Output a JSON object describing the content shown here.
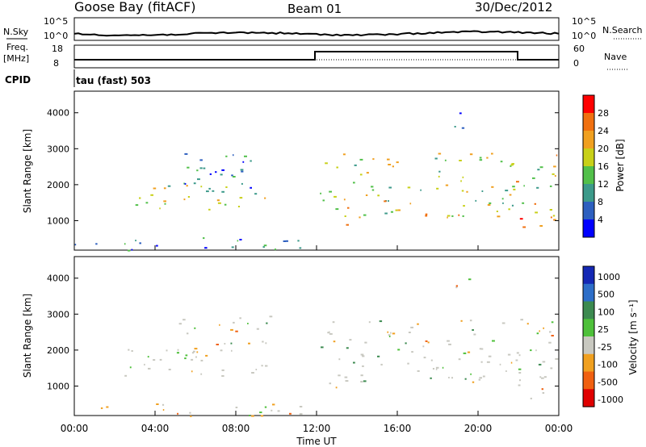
{
  "header": {
    "station": "Goose Bay (fitACF)",
    "beam": "Beam 01",
    "date": "30/Dec/2012"
  },
  "aux_panels": {
    "nsky_label": "N.Sky",
    "nsky_ticks": [
      "10^5",
      "10^0"
    ],
    "nsearch_label": "N.Search",
    "nsearch_ticks": [
      "10^5",
      "10^0"
    ],
    "freq_label": "Freq.",
    "freq_unit": "[MHz]",
    "freq_ticks": [
      "18",
      "8"
    ],
    "nave_label": "Nave",
    "nave_ticks": [
      "60",
      "0"
    ],
    "cpid_label": "CPID",
    "cpid_value": "tau (fast) 503"
  },
  "chart_data": [
    {
      "type": "heatmap",
      "name": "power",
      "ylabel": "Slant Range [km]",
      "ylim": [
        180,
        4600
      ],
      "yticks": [
        "1000",
        "2000",
        "3000",
        "4000"
      ],
      "xlim": [
        "00:00",
        "24:00"
      ],
      "colorbar": {
        "label": "Power [dB]",
        "ticks": [
          "4",
          "8",
          "12",
          "16",
          "20",
          "24",
          "28"
        ],
        "colors": [
          "#0000ff",
          "#2d5fbf",
          "#3c9a8a",
          "#52c04a",
          "#c8d018",
          "#f0a020",
          "#f07010",
          "#ff0000"
        ]
      },
      "echo_regions": [
        {
          "t0": 2.4,
          "t1": 9.6,
          "r0": 1250,
          "r1": 2100,
          "level": 0.5
        },
        {
          "t0": 5.0,
          "t1": 9.8,
          "r0": 1900,
          "r1": 3000,
          "level": 0.2
        },
        {
          "t0": 12.1,
          "t1": 24.0,
          "r0": 1100,
          "r1": 2900,
          "level": 0.55
        },
        {
          "t0": 12.5,
          "t1": 13.5,
          "r0": 850,
          "r1": 1300,
          "level": 0.7
        },
        {
          "t0": 21.8,
          "t1": 23.8,
          "r0": 600,
          "r1": 1300,
          "level": 0.8
        },
        {
          "t0": 0.0,
          "t1": 11.8,
          "r0": 180,
          "r1": 550,
          "level": 0.15
        },
        {
          "t0": 18.8,
          "t1": 19.8,
          "r0": 3500,
          "r1": 4100,
          "level": 0.25
        }
      ]
    },
    {
      "type": "heatmap",
      "name": "velocity",
      "xlabel": "Time UT",
      "ylabel": "Slant Range [km]",
      "ylim": [
        180,
        4600
      ],
      "yticks": [
        "1000",
        "2000",
        "3000",
        "4000"
      ],
      "xticks": [
        "00:00",
        "04:00",
        "08:00",
        "12:00",
        "16:00",
        "20:00",
        "00:00"
      ],
      "colorbar": {
        "label": "Velocity [m s⁻¹]",
        "ticks": [
          "1000",
          "500",
          "100",
          "25",
          "-25",
          "-100",
          "-500",
          "-1000"
        ],
        "colors": [
          "#1428b4",
          "#2d6ec8",
          "#3c8a50",
          "#4ec03a",
          "#c8c8c0",
          "#f0a020",
          "#f06010",
          "#e00000"
        ]
      },
      "echo_regions": [
        {
          "t0": 2.4,
          "t1": 9.6,
          "r0": 1250,
          "r1": 2100,
          "level": 0.5
        },
        {
          "t0": 5.0,
          "t1": 9.8,
          "r0": 1900,
          "r1": 3000,
          "level": 0.2
        },
        {
          "t0": 12.1,
          "t1": 24.0,
          "r0": 1100,
          "r1": 2900,
          "level": 0.55
        },
        {
          "t0": 12.5,
          "t1": 13.5,
          "r0": 850,
          "r1": 1300,
          "level": 0.7
        },
        {
          "t0": 21.8,
          "t1": 23.8,
          "r0": 600,
          "r1": 1300,
          "level": 0.8
        },
        {
          "t0": 0.0,
          "t1": 11.8,
          "r0": 180,
          "r1": 550,
          "level": 0.15
        },
        {
          "t0": 18.8,
          "t1": 19.8,
          "r0": 3500,
          "r1": 4100,
          "level": 0.25
        }
      ]
    }
  ]
}
